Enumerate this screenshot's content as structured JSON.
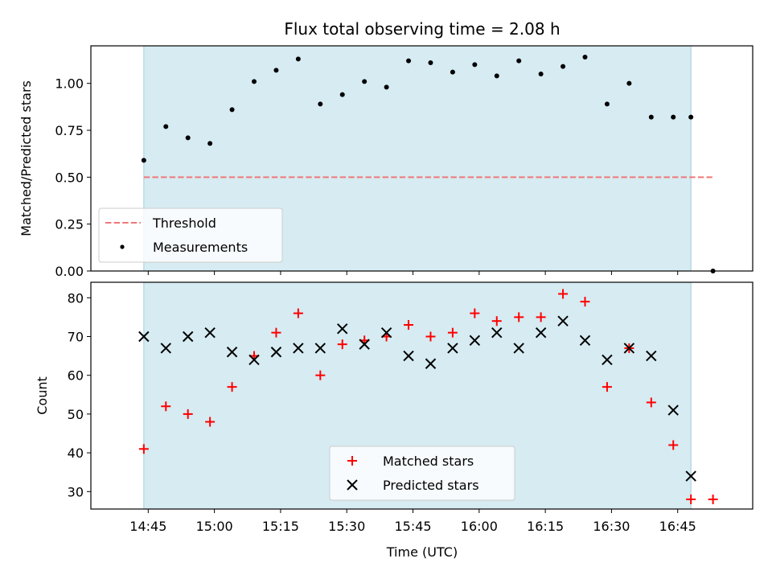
{
  "chart_data": [
    {
      "type": "scatter",
      "title": "Flux total observing time = 2.08 h",
      "ylabel": "Matched/Predicted stars",
      "ylim": [
        0,
        1.2
      ],
      "xlim": [
        "14:32",
        "17:02"
      ],
      "yticks": [
        "0.00",
        "0.25",
        "0.50",
        "0.75",
        "1.00"
      ],
      "observing_span": [
        "14:44",
        "16:48"
      ],
      "series": [
        {
          "name": "Threshold",
          "style": "dashed-line",
          "color": "#f07878",
          "x": [
            "14:44",
            "16:53"
          ],
          "y": [
            0.5,
            0.5
          ]
        },
        {
          "name": "Measurements",
          "style": "dot",
          "color": "#000000",
          "x": [
            "14:44",
            "14:49",
            "14:54",
            "14:59",
            "15:04",
            "15:09",
            "15:14",
            "15:19",
            "15:24",
            "15:29",
            "15:34",
            "15:39",
            "15:44",
            "15:49",
            "15:54",
            "15:59",
            "16:04",
            "16:09",
            "16:14",
            "16:19",
            "16:24",
            "16:29",
            "16:34",
            "16:39",
            "16:44",
            "16:48",
            "16:53"
          ],
          "y": [
            0.59,
            0.77,
            0.71,
            0.68,
            0.86,
            1.01,
            1.07,
            1.13,
            0.89,
            0.94,
            1.01,
            0.98,
            1.12,
            1.11,
            1.06,
            1.1,
            1.04,
            1.12,
            1.05,
            1.09,
            1.14,
            0.89,
            1.0,
            0.82,
            0.82,
            0.82,
            0.0
          ]
        }
      ],
      "legend": {
        "placement": "lower-left",
        "entries": [
          "Threshold",
          "Measurements"
        ]
      }
    },
    {
      "type": "scatter",
      "xlabel": "Time (UTC)",
      "ylabel": "Count",
      "ylim": [
        25.5,
        84
      ],
      "yticks": [
        "30",
        "40",
        "50",
        "60",
        "70",
        "80"
      ],
      "xticks": [
        "14:45",
        "15:00",
        "15:15",
        "15:30",
        "15:45",
        "16:00",
        "16:15",
        "16:30",
        "16:45"
      ],
      "observing_span": [
        "14:44",
        "16:48"
      ],
      "series": [
        {
          "name": "Matched stars",
          "marker": "plus",
          "color": "#ff0000",
          "x": [
            "14:44",
            "14:49",
            "14:54",
            "14:59",
            "15:04",
            "15:09",
            "15:14",
            "15:19",
            "15:24",
            "15:29",
            "15:34",
            "15:39",
            "15:44",
            "15:49",
            "15:54",
            "15:59",
            "16:04",
            "16:09",
            "16:14",
            "16:19",
            "16:24",
            "16:29",
            "16:34",
            "16:39",
            "16:44",
            "16:48",
            "16:53"
          ],
          "y": [
            41,
            52,
            50,
            48,
            57,
            65,
            71,
            76,
            60,
            68,
            69,
            70,
            73,
            70,
            71,
            76,
            74,
            75,
            75,
            81,
            79,
            57,
            67,
            53,
            42,
            28,
            28
          ]
        },
        {
          "name": "Predicted stars",
          "marker": "x",
          "color": "#000000",
          "x": [
            "14:44",
            "14:49",
            "14:54",
            "14:59",
            "15:04",
            "15:09",
            "15:14",
            "15:19",
            "15:24",
            "15:29",
            "15:34",
            "15:39",
            "15:44",
            "15:49",
            "15:54",
            "15:59",
            "16:04",
            "16:09",
            "16:14",
            "16:19",
            "16:24",
            "16:29",
            "16:34",
            "16:39",
            "16:44",
            "16:48"
          ],
          "y": [
            70,
            67,
            70,
            71,
            66,
            64,
            66,
            67,
            67,
            72,
            68,
            71,
            65,
            63,
            67,
            69,
            71,
            67,
            71,
            74,
            69,
            64,
            67,
            65,
            51,
            34
          ]
        }
      ],
      "legend": {
        "placement": "lower-center",
        "entries": [
          "Matched stars",
          "Predicted stars"
        ]
      }
    }
  ]
}
